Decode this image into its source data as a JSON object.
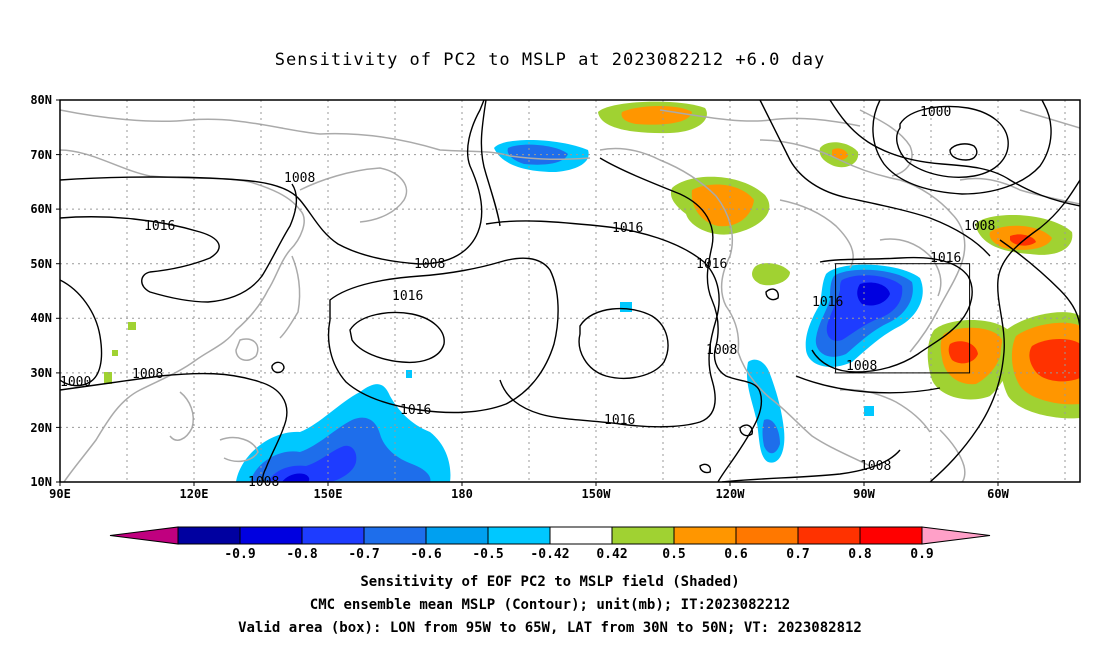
{
  "title": "Sensitivity of PC2 to MSLP at 2023082212 +6.0 day",
  "lat_labels": [
    "80N",
    "70N",
    "60N",
    "50N",
    "40N",
    "30N",
    "20N",
    "10N"
  ],
  "lon_labels": [
    "90E",
    "120E",
    "150E",
    "180",
    "150W",
    "120W",
    "90W",
    "60W"
  ],
  "contour_labels": [
    "1016",
    "1008",
    "1008",
    "1000",
    "1016",
    "1008",
    "1016",
    "1016",
    "1016",
    "1016",
    "1008",
    "1016",
    "1016",
    "1008",
    "1008",
    "1008",
    "1000",
    "1008"
  ],
  "colorbar": {
    "labels": [
      "-0.9",
      "-0.8",
      "-0.7",
      "-0.6",
      "-0.5",
      "-0.42",
      "0.42",
      "0.5",
      "0.6",
      "0.7",
      "0.8",
      "0.9"
    ],
    "colors": [
      "#c0007f",
      "#0000a0",
      "#0000e0",
      "#1e3cff",
      "#1e6eeb",
      "#00a0f0",
      "#00c8ff",
      "#ffffff",
      "#a0d232",
      "#ff9600",
      "#ff7800",
      "#ff3200",
      "#ff0000",
      "#ffa0c8"
    ]
  },
  "box": {
    "lon_from": "95W",
    "lon_to": "65W",
    "lat_from": "30N",
    "lat_to": "50N"
  },
  "captions": {
    "line1": "Sensitivity of EOF PC2 to MSLP field (Shaded)",
    "line2": "CMC ensemble mean MSLP (Contour); unit(mb); IT:2023082212",
    "line3": "Valid area (box): LON from 95W to 65W, LAT from 30N to 50N; VT: 2023082812"
  }
}
